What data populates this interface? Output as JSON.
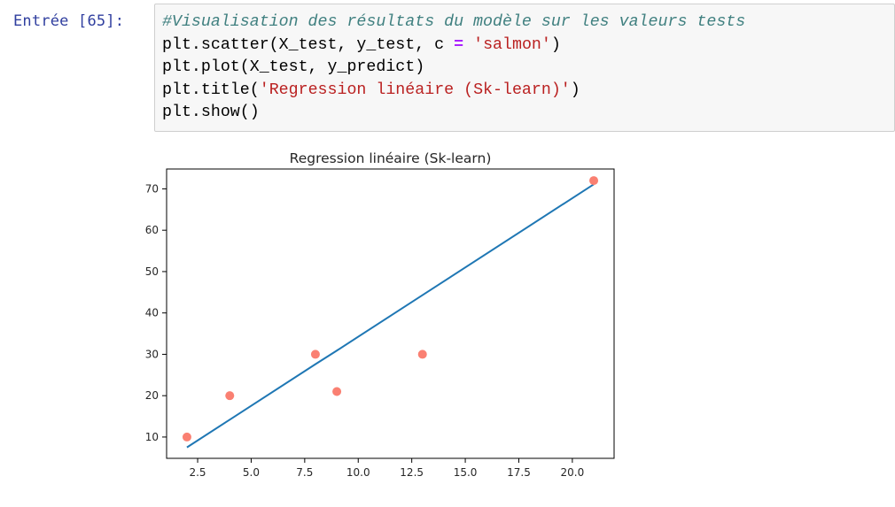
{
  "cell": {
    "prompt": "Entrée [65]:",
    "code_lines": [
      [
        {
          "t": "#Visualisation des résultats du modèle sur les valeurs tests",
          "c": "comment"
        }
      ],
      [
        {
          "t": "plt.scatter(X_test, y_test, c ",
          "c": ""
        },
        {
          "t": "=",
          "c": "op"
        },
        {
          "t": " ",
          "c": ""
        },
        {
          "t": "'salmon'",
          "c": "string"
        },
        {
          "t": ")",
          "c": ""
        }
      ],
      [
        {
          "t": "plt.plot(X_test, y_predict)",
          "c": ""
        }
      ],
      [
        {
          "t": "plt.title(",
          "c": ""
        },
        {
          "t": "'Regression linéaire (Sk-learn)'",
          "c": "string"
        },
        {
          "t": ")",
          "c": ""
        }
      ],
      [
        {
          "t": "plt.show()",
          "c": ""
        }
      ]
    ]
  },
  "chart_data": {
    "type": "scatter",
    "title": "Regression linéaire (Sk-learn)",
    "xlabel": "",
    "ylabel": "",
    "xlim": [
      1.05,
      21.95
    ],
    "ylim": [
      4.85,
      74.8
    ],
    "xticks": [
      2.5,
      5.0,
      7.5,
      10.0,
      12.5,
      15.0,
      17.5,
      20.0
    ],
    "xtick_labels": [
      "2.5",
      "5.0",
      "7.5",
      "10.0",
      "12.5",
      "15.0",
      "17.5",
      "20.0"
    ],
    "yticks": [
      10,
      20,
      30,
      40,
      50,
      60,
      70
    ],
    "ytick_labels": [
      "10",
      "20",
      "30",
      "40",
      "50",
      "60",
      "70"
    ],
    "grid": false,
    "series": [
      {
        "kind": "scatter",
        "color": "#fa8072",
        "x": [
          2,
          4,
          8,
          9,
          13,
          21
        ],
        "y": [
          10,
          20,
          30,
          21,
          30,
          72
        ]
      },
      {
        "kind": "line",
        "color": "#1f77b4",
        "x": [
          2,
          4,
          8,
          9,
          13,
          21
        ],
        "y": [
          7.5,
          14.2,
          27.6,
          30.9,
          44.3,
          71.1
        ]
      }
    ]
  }
}
